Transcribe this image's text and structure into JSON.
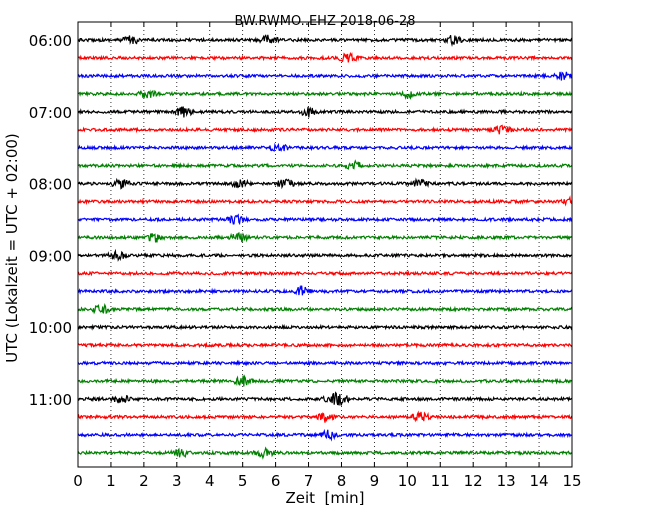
{
  "chart_data": {
    "type": "line",
    "title": "BW.RWMO..EHZ 2018-06-28",
    "xlabel": "Zeit  [min]",
    "ylabel": "UTC (Lokalzeit = UTC + 02:00)",
    "xlim": [
      0,
      15
    ],
    "x_ticks": [
      "0",
      "1",
      "2",
      "3",
      "4",
      "5",
      "6",
      "7",
      "8",
      "9",
      "10",
      "11",
      "12",
      "13",
      "14",
      "15"
    ],
    "y_ticks": [
      "06:00",
      "07:00",
      "08:00",
      "09:00",
      "10:00",
      "11:00"
    ],
    "grid": "vertical dotted",
    "colors": [
      "#000000",
      "#ff0000",
      "#0000ff",
      "#008000"
    ],
    "trace_start": "06:00",
    "trace_interval_min": 15,
    "traces": [
      {
        "start": "06:00",
        "color": "#000000",
        "events_min": [
          1.6,
          5.8,
          11.4
        ]
      },
      {
        "start": "06:15",
        "color": "#ff0000",
        "events_min": [
          8.2
        ]
      },
      {
        "start": "06:30",
        "color": "#0000ff",
        "events_min": [
          14.7
        ]
      },
      {
        "start": "06:45",
        "color": "#008000",
        "events_min": [
          2.1,
          10.0
        ]
      },
      {
        "start": "07:00",
        "color": "#000000",
        "events_min": [
          3.2,
          7.0
        ]
      },
      {
        "start": "07:15",
        "color": "#ff0000",
        "events_min": [
          12.9
        ]
      },
      {
        "start": "07:30",
        "color": "#0000ff",
        "events_min": [
          6.1
        ]
      },
      {
        "start": "07:45",
        "color": "#008000",
        "events_min": [
          8.4
        ]
      },
      {
        "start": "08:00",
        "color": "#000000",
        "events_min": [
          1.3,
          4.9,
          6.3,
          10.4
        ]
      },
      {
        "start": "08:15",
        "color": "#ff0000",
        "events_min": [
          15.0
        ]
      },
      {
        "start": "08:30",
        "color": "#0000ff",
        "events_min": [
          4.8
        ]
      },
      {
        "start": "08:45",
        "color": "#008000",
        "events_min": [
          2.35,
          4.9
        ]
      },
      {
        "start": "09:00",
        "color": "#000000",
        "events_min": [
          1.2
        ]
      },
      {
        "start": "09:15",
        "color": "#ff0000",
        "events_min": []
      },
      {
        "start": "09:30",
        "color": "#0000ff",
        "events_min": [
          6.8
        ]
      },
      {
        "start": "09:45",
        "color": "#008000",
        "events_min": [
          0.7
        ]
      },
      {
        "start": "10:00",
        "color": "#000000",
        "events_min": []
      },
      {
        "start": "10:15",
        "color": "#ff0000",
        "events_min": []
      },
      {
        "start": "10:30",
        "color": "#0000ff",
        "events_min": []
      },
      {
        "start": "10:45",
        "color": "#008000",
        "events_min": [
          5.0
        ]
      },
      {
        "start": "11:00",
        "color": "#000000",
        "events_min": [
          1.3,
          7.7,
          8.0
        ]
      },
      {
        "start": "11:15",
        "color": "#ff0000",
        "events_min": [
          7.5,
          10.4
        ]
      },
      {
        "start": "11:30",
        "color": "#0000ff",
        "events_min": [
          7.6
        ]
      },
      {
        "start": "11:45",
        "color": "#008000",
        "events_min": [
          3.1,
          5.65
        ]
      }
    ]
  }
}
